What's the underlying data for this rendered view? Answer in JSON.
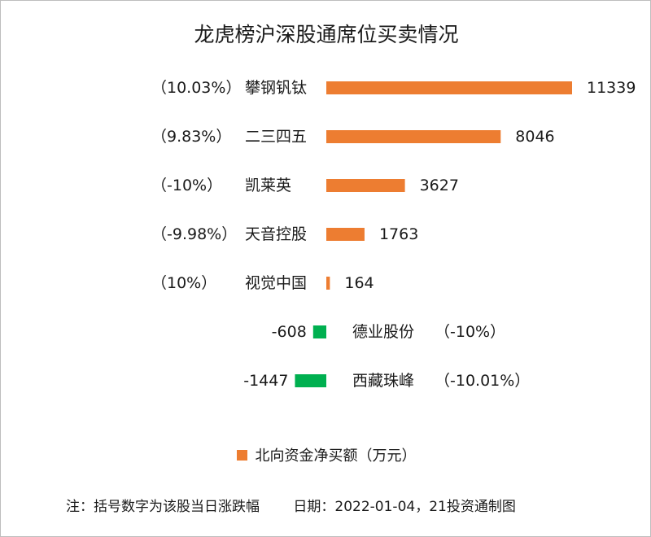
{
  "chart_data": {
    "type": "bar",
    "orientation": "horizontal",
    "title": "龙虎榜沪深股通席位买卖情况",
    "categories": [
      "攀钢钒钛",
      "二三四五",
      "凯莱英",
      "天音控股",
      "视觉中国",
      "德业股份",
      "西藏珠峰"
    ],
    "series": [
      {
        "name": "北向资金净买额（万元）",
        "values": [
          11339,
          8046,
          3627,
          1763,
          164,
          -608,
          -1447
        ]
      }
    ],
    "value_labels": [
      "11339",
      "8046",
      "3627",
      "1763",
      "164",
      "-608",
      "-1447"
    ],
    "pct_labels": [
      "（10.03%）",
      "（9.83%）",
      "（-10%）",
      "（-9.98%）",
      "（10%）",
      "（-10%）",
      "（-10.01%）"
    ],
    "positive_color": "#ed7d31",
    "negative_color": "#00b050",
    "legend_position": "bottom",
    "grid": false
  },
  "legend": {
    "label": "北向资金净买额（万元）",
    "color": "#ed7d31"
  },
  "footnote": {
    "note": "注：括号数字为该股当日涨跌幅",
    "date": "日期：2022-01-04，21投资通制图"
  }
}
